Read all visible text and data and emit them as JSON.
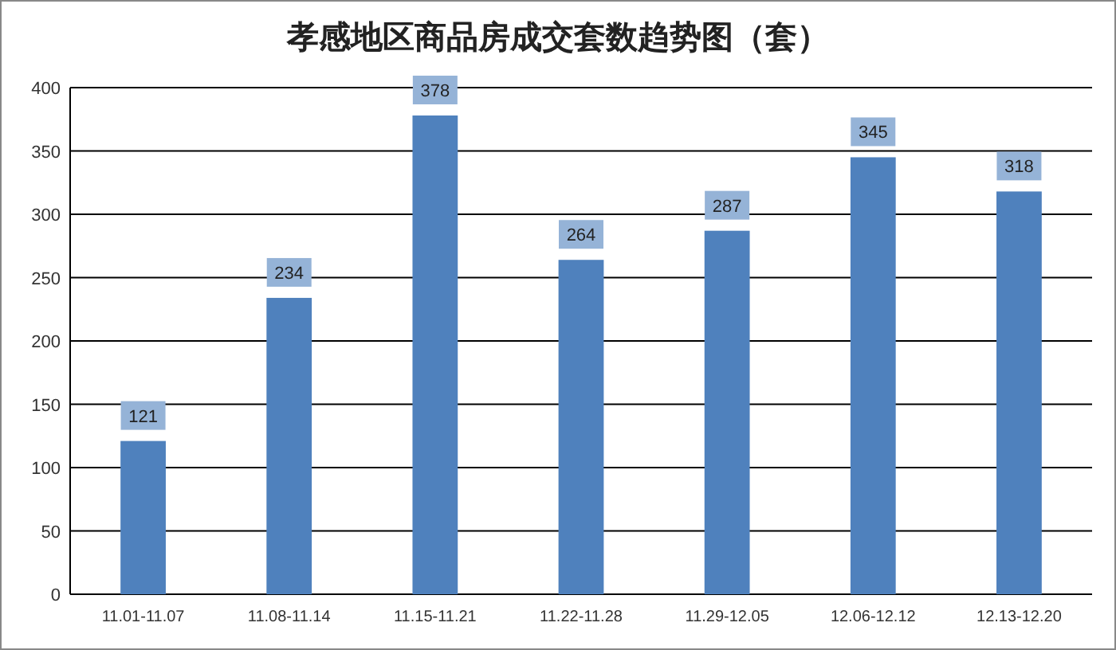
{
  "chart_data": {
    "type": "bar",
    "title": "孝感地区商品房成交套数趋势图（套）",
    "categories": [
      "11.01-11.07",
      "11.08-11.14",
      "11.15-11.21",
      "11.22-11.28",
      "11.29-12.05",
      "12.06-12.12",
      "12.13-12.20"
    ],
    "values": [
      121,
      234,
      378,
      264,
      287,
      345,
      318
    ],
    "color": "#4f81bd",
    "ylim": [
      0,
      400
    ],
    "yticks": [
      0,
      50,
      100,
      150,
      200,
      250,
      300,
      350,
      400
    ],
    "grid": "y",
    "data_labels": true
  }
}
